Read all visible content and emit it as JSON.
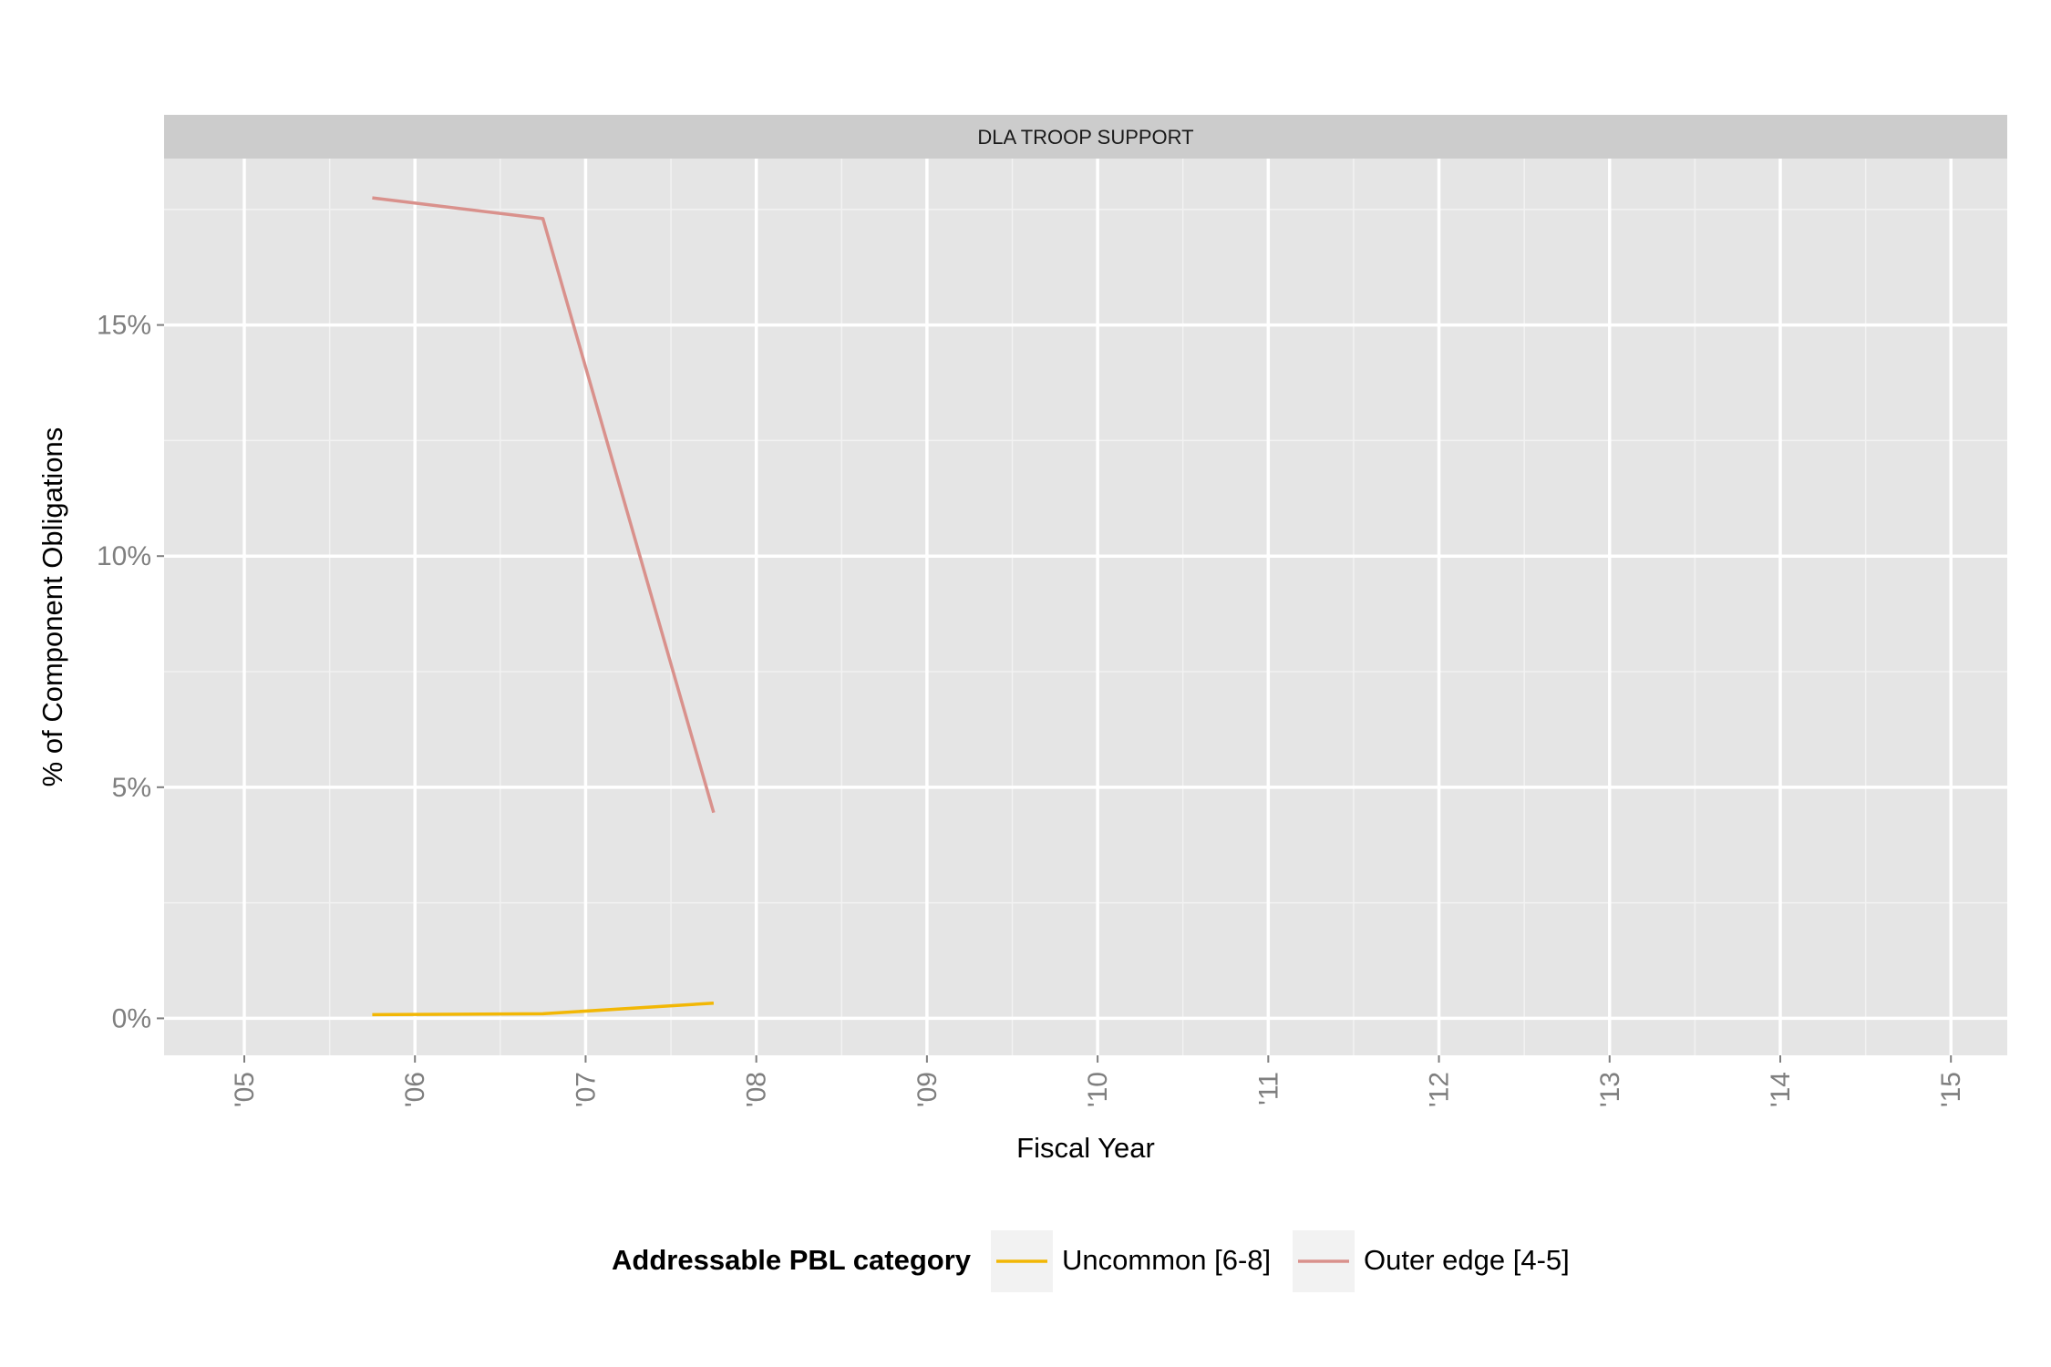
{
  "chart_data": {
    "type": "line",
    "panel_title": "DLA TROOP SUPPORT",
    "xlabel": "Fiscal Year",
    "ylabel": "% of Component Obligations",
    "x_ticks": [
      "'05",
      "'06",
      "'07",
      "'08",
      "'09",
      "'10",
      "'11",
      "'12",
      "'13",
      "'14",
      "'15"
    ],
    "x_tick_values": [
      2005,
      2006,
      2007,
      2008,
      2009,
      2010,
      2011,
      2012,
      2013,
      2014,
      2015
    ],
    "y_ticks": [
      "0%",
      "5%",
      "10%",
      "15%"
    ],
    "y_tick_values": [
      0,
      5,
      10,
      15
    ],
    "xlim": [
      2004.53,
      2015.33
    ],
    "ylim": [
      -0.8,
      18.6
    ],
    "grid": true,
    "legend": {
      "title": "Addressable PBL category",
      "position": "bottom"
    },
    "series": [
      {
        "name": "Uncommon [6-8]",
        "color": "#F2B705",
        "x": [
          2005.75,
          2006.75,
          2007.75
        ],
        "y": [
          0.08,
          0.1,
          0.33
        ]
      },
      {
        "name": "Outer edge [4-5]",
        "color": "#D9918C",
        "x": [
          2005.75,
          2006.75,
          2007.75
        ],
        "y": [
          17.75,
          17.3,
          4.45
        ]
      }
    ]
  }
}
